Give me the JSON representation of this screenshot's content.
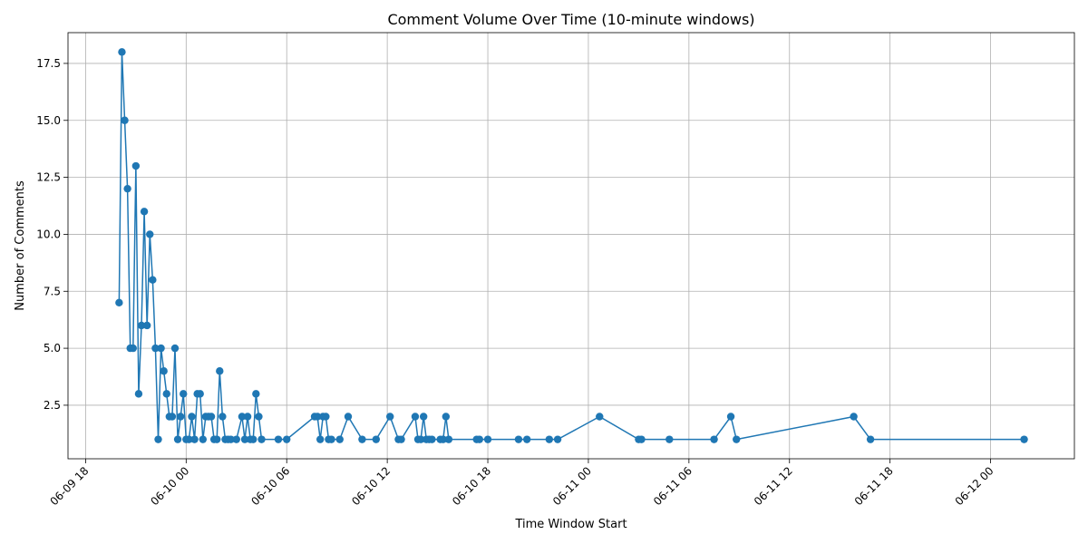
{
  "chart_data": {
    "type": "line",
    "title": "Comment Volume Over Time (10-minute windows)",
    "xlabel": "Time Window Start",
    "ylabel": "Number of Comments",
    "x_is_datetime": true,
    "xlim": [
      "2024-06-09 16:57",
      "2024-06-12 05:00"
    ],
    "ylim": [
      0.15,
      18.85
    ],
    "grid": true,
    "color": "#1f77b4",
    "marker": "circle",
    "xticks": [
      {
        "t": "2024-06-09 18:00",
        "label": "06-09 18"
      },
      {
        "t": "2024-06-10 00:00",
        "label": "06-10 00"
      },
      {
        "t": "2024-06-10 06:00",
        "label": "06-10 06"
      },
      {
        "t": "2024-06-10 12:00",
        "label": "06-10 12"
      },
      {
        "t": "2024-06-10 18:00",
        "label": "06-10 18"
      },
      {
        "t": "2024-06-11 00:00",
        "label": "06-11 00"
      },
      {
        "t": "2024-06-11 06:00",
        "label": "06-11 06"
      },
      {
        "t": "2024-06-11 12:00",
        "label": "06-11 12"
      },
      {
        "t": "2024-06-11 18:00",
        "label": "06-11 18"
      },
      {
        "t": "2024-06-12 00:00",
        "label": "06-12 00"
      }
    ],
    "yticks": [
      {
        "v": 2.5,
        "label": "2.5"
      },
      {
        "v": 5.0,
        "label": "5.0"
      },
      {
        "v": 7.5,
        "label": "7.5"
      },
      {
        "v": 10.0,
        "label": "10.0"
      },
      {
        "v": 12.5,
        "label": "12.5"
      },
      {
        "v": 15.0,
        "label": "15.0"
      },
      {
        "v": 17.5,
        "label": "17.5"
      }
    ],
    "x": [
      "2024-06-09 20:00",
      "2024-06-09 20:10",
      "2024-06-09 20:20",
      "2024-06-09 20:30",
      "2024-06-09 20:40",
      "2024-06-09 20:50",
      "2024-06-09 21:00",
      "2024-06-09 21:10",
      "2024-06-09 21:20",
      "2024-06-09 21:30",
      "2024-06-09 21:40",
      "2024-06-09 21:50",
      "2024-06-09 22:00",
      "2024-06-09 22:10",
      "2024-06-09 22:20",
      "2024-06-09 22:30",
      "2024-06-09 22:40",
      "2024-06-09 22:50",
      "2024-06-09 23:00",
      "2024-06-09 23:10",
      "2024-06-09 23:20",
      "2024-06-09 23:30",
      "2024-06-09 23:40",
      "2024-06-09 23:50",
      "2024-06-10 00:00",
      "2024-06-10 00:10",
      "2024-06-10 00:20",
      "2024-06-10 00:30",
      "2024-06-10 00:40",
      "2024-06-10 00:50",
      "2024-06-10 01:00",
      "2024-06-10 01:10",
      "2024-06-10 01:20",
      "2024-06-10 01:30",
      "2024-06-10 01:40",
      "2024-06-10 01:50",
      "2024-06-10 02:00",
      "2024-06-10 02:10",
      "2024-06-10 02:20",
      "2024-06-10 02:30",
      "2024-06-10 02:40",
      "2024-06-10 03:00",
      "2024-06-10 03:20",
      "2024-06-10 03:30",
      "2024-06-10 03:40",
      "2024-06-10 03:50",
      "2024-06-10 04:00",
      "2024-06-10 04:10",
      "2024-06-10 04:20",
      "2024-06-10 04:30",
      "2024-06-10 05:30",
      "2024-06-10 06:00",
      "2024-06-10 07:40",
      "2024-06-10 07:50",
      "2024-06-10 08:00",
      "2024-06-10 08:10",
      "2024-06-10 08:20",
      "2024-06-10 08:30",
      "2024-06-10 08:40",
      "2024-06-10 09:10",
      "2024-06-10 09:40",
      "2024-06-10 10:30",
      "2024-06-10 11:20",
      "2024-06-10 12:10",
      "2024-06-10 12:40",
      "2024-06-10 12:50",
      "2024-06-10 13:40",
      "2024-06-10 13:50",
      "2024-06-10 14:00",
      "2024-06-10 14:10",
      "2024-06-10 14:20",
      "2024-06-10 14:30",
      "2024-06-10 14:40",
      "2024-06-10 15:10",
      "2024-06-10 15:20",
      "2024-06-10 15:30",
      "2024-06-10 15:40",
      "2024-06-10 17:20",
      "2024-06-10 17:30",
      "2024-06-10 18:00",
      "2024-06-10 19:50",
      "2024-06-10 20:20",
      "2024-06-10 21:40",
      "2024-06-10 22:10",
      "2024-06-11 00:40",
      "2024-06-11 03:00",
      "2024-06-11 03:10",
      "2024-06-11 04:50",
      "2024-06-11 07:30",
      "2024-06-11 08:30",
      "2024-06-11 08:50",
      "2024-06-11 15:50",
      "2024-06-11 16:50",
      "2024-06-12 02:00"
    ],
    "values": [
      7,
      18,
      15,
      12,
      5,
      5,
      13,
      3,
      6,
      11,
      6,
      10,
      8,
      5,
      1,
      5,
      4,
      3,
      2,
      2,
      5,
      1,
      2,
      3,
      1,
      1,
      2,
      1,
      3,
      3,
      1,
      2,
      2,
      2,
      1,
      1,
      4,
      2,
      1,
      1,
      1,
      1,
      2,
      1,
      2,
      1,
      1,
      3,
      2,
      1,
      1,
      1,
      2,
      2,
      1,
      2,
      2,
      1,
      1,
      1,
      2,
      1,
      1,
      2,
      1,
      1,
      2,
      1,
      1,
      2,
      1,
      1,
      1,
      1,
      1,
      2,
      1,
      1,
      1,
      1,
      1,
      1,
      1,
      1,
      2,
      1,
      1,
      1,
      1,
      2,
      1,
      2,
      1,
      1
    ]
  }
}
